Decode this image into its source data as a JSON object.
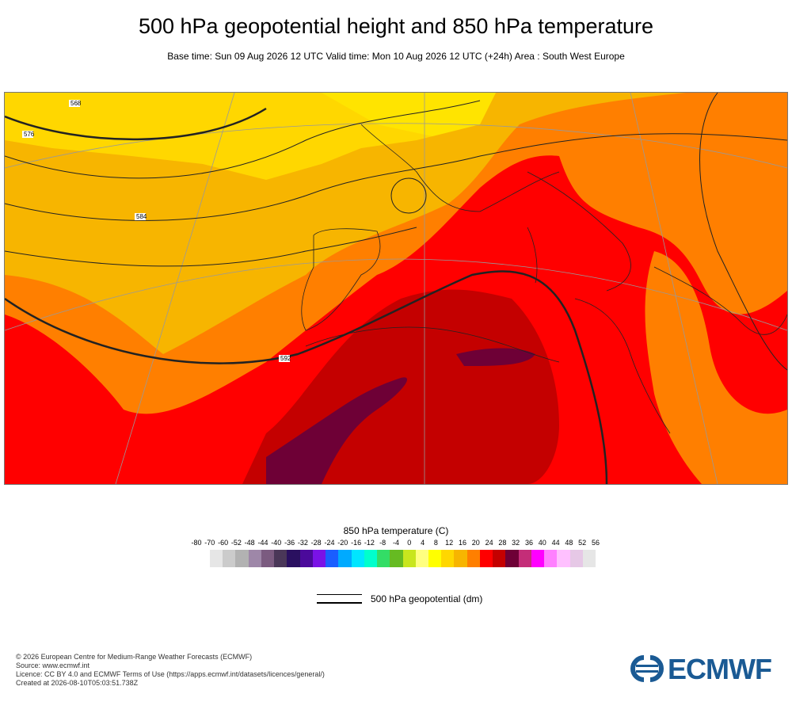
{
  "header": {
    "title": "500 hPa geopotential height and 850 hPa temperature",
    "subtitle": "Base time: Sun 09 Aug 2026 12 UTC Valid time: Mon 10 Aug 2026 12 UTC (+24h) Area : South West Europe"
  },
  "map": {
    "contour_labels": [
      "568",
      "576",
      "584",
      "592"
    ],
    "colors": {
      "t16": "#f7b500",
      "t20": "#ff7f00",
      "t24": "#ff0000",
      "t28": "#c40000",
      "t32": "#6e0036",
      "t12": "#ffd700"
    }
  },
  "colorbar": {
    "title": "850 hPa temperature (C)",
    "ticks": [
      "-80",
      "-70",
      "-60",
      "-52",
      "-48",
      "-44",
      "-40",
      "-36",
      "-32",
      "-28",
      "-24",
      "-20",
      "-16",
      "-12",
      "-8",
      "-4",
      "0",
      "4",
      "8",
      "12",
      "16",
      "20",
      "24",
      "28",
      "32",
      "36",
      "40",
      "44",
      "48",
      "52",
      "56"
    ],
    "colors": [
      "#e6e6e6",
      "#cbcbcb",
      "#b2b2b2",
      "#9e87a8",
      "#7b5b80",
      "#4a3758",
      "#2a1060",
      "#4b0a9b",
      "#7a12e6",
      "#1a5eff",
      "#00aaff",
      "#00e6ff",
      "#00ffcc",
      "#33dd66",
      "#66bb22",
      "#c8e61e",
      "#ffff80",
      "#ffff00",
      "#ffd700",
      "#f7b500",
      "#ff7f00",
      "#ff0000",
      "#c40000",
      "#6e0036",
      "#c42d78",
      "#ff00ff",
      "#ff80ff",
      "#ffc0ff",
      "#e6c8e6",
      "#e6e6e6"
    ]
  },
  "legend": {
    "label": "500 hPa geopotential (dm)"
  },
  "footer": {
    "line1": "© 2026 European Centre for Medium-Range Weather Forecasts (ECMWF)",
    "line2": "Source: www.ecmwf.int",
    "line3": "Licence: CC BY 4.0 and ECMWF Terms of Use (https://apps.ecmwf.int/datasets/licences/general/)",
    "line4": "Created at 2026-08-10T05:03:51.738Z"
  },
  "logo": {
    "text": "ECMWF",
    "color": "#1a5a94"
  }
}
